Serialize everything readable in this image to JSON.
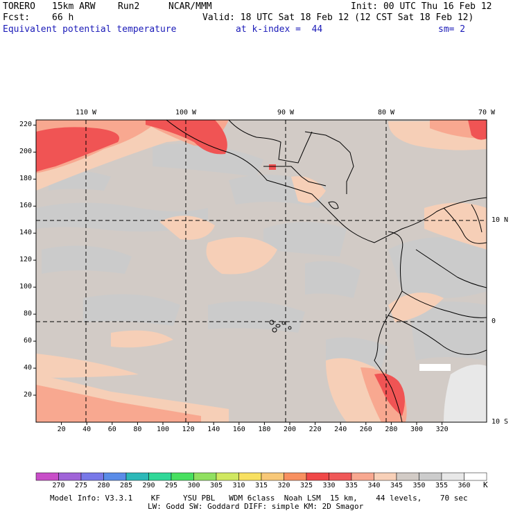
{
  "header": {
    "model": "TORERO",
    "resolution": "15km ARW",
    "run": "Run2",
    "org": "NCAR/MMM",
    "init": "Init: 00 UTC Thu 16 Feb 12",
    "fcst_label": "Fcst:",
    "fcst_value": "66 h",
    "valid": "Valid: 18 UTC Sat 18 Feb 12 (12 CST Sat 18 Feb 12)",
    "field": "Equivalent potential temperature",
    "level": "at k-index =  44",
    "smoothing": "sm= 2"
  },
  "map": {
    "top_lon_labels": [
      "110 W",
      "100 W",
      "90 W",
      "80 W",
      "70 W"
    ],
    "right_lat_labels": [
      "10 N",
      "0",
      "10 S"
    ],
    "y_ticks": [
      "220",
      "200",
      "180",
      "160",
      "140",
      "120",
      "100",
      "80",
      "60",
      "40",
      "20"
    ],
    "x_ticks": [
      "20",
      "40",
      "60",
      "80",
      "100",
      "120",
      "140",
      "160",
      "180",
      "200",
      "220",
      "240",
      "260",
      "280",
      "300",
      "320"
    ]
  },
  "colorbar": {
    "labels": [
      "270",
      "275",
      "280",
      "285",
      "290",
      "295",
      "300",
      "305",
      "310",
      "315",
      "320",
      "325",
      "330",
      "335",
      "340",
      "345",
      "350",
      "355",
      "360"
    ],
    "unit": "K",
    "colors": [
      "#c84ec8",
      "#a064d8",
      "#7878e8",
      "#5a8ce8",
      "#2cb8b8",
      "#30d898",
      "#48e060",
      "#90e060",
      "#d0e860",
      "#f8e060",
      "#f8c878",
      "#f89060",
      "#f04848",
      "#f05858",
      "#f8a890",
      "#f8d0b8",
      "#d2cbc6",
      "#cccccc",
      "#e8e8e8",
      "#ffffff"
    ]
  },
  "footer": {
    "line1": "Model Info: V3.3.1    KF     YSU PBL   WDM 6class  Noah LSM  15 km,    44 levels,    70 sec",
    "line2": "LW: Godd SW: Goddard DIFF: simple KM: 2D Smagor"
  }
}
